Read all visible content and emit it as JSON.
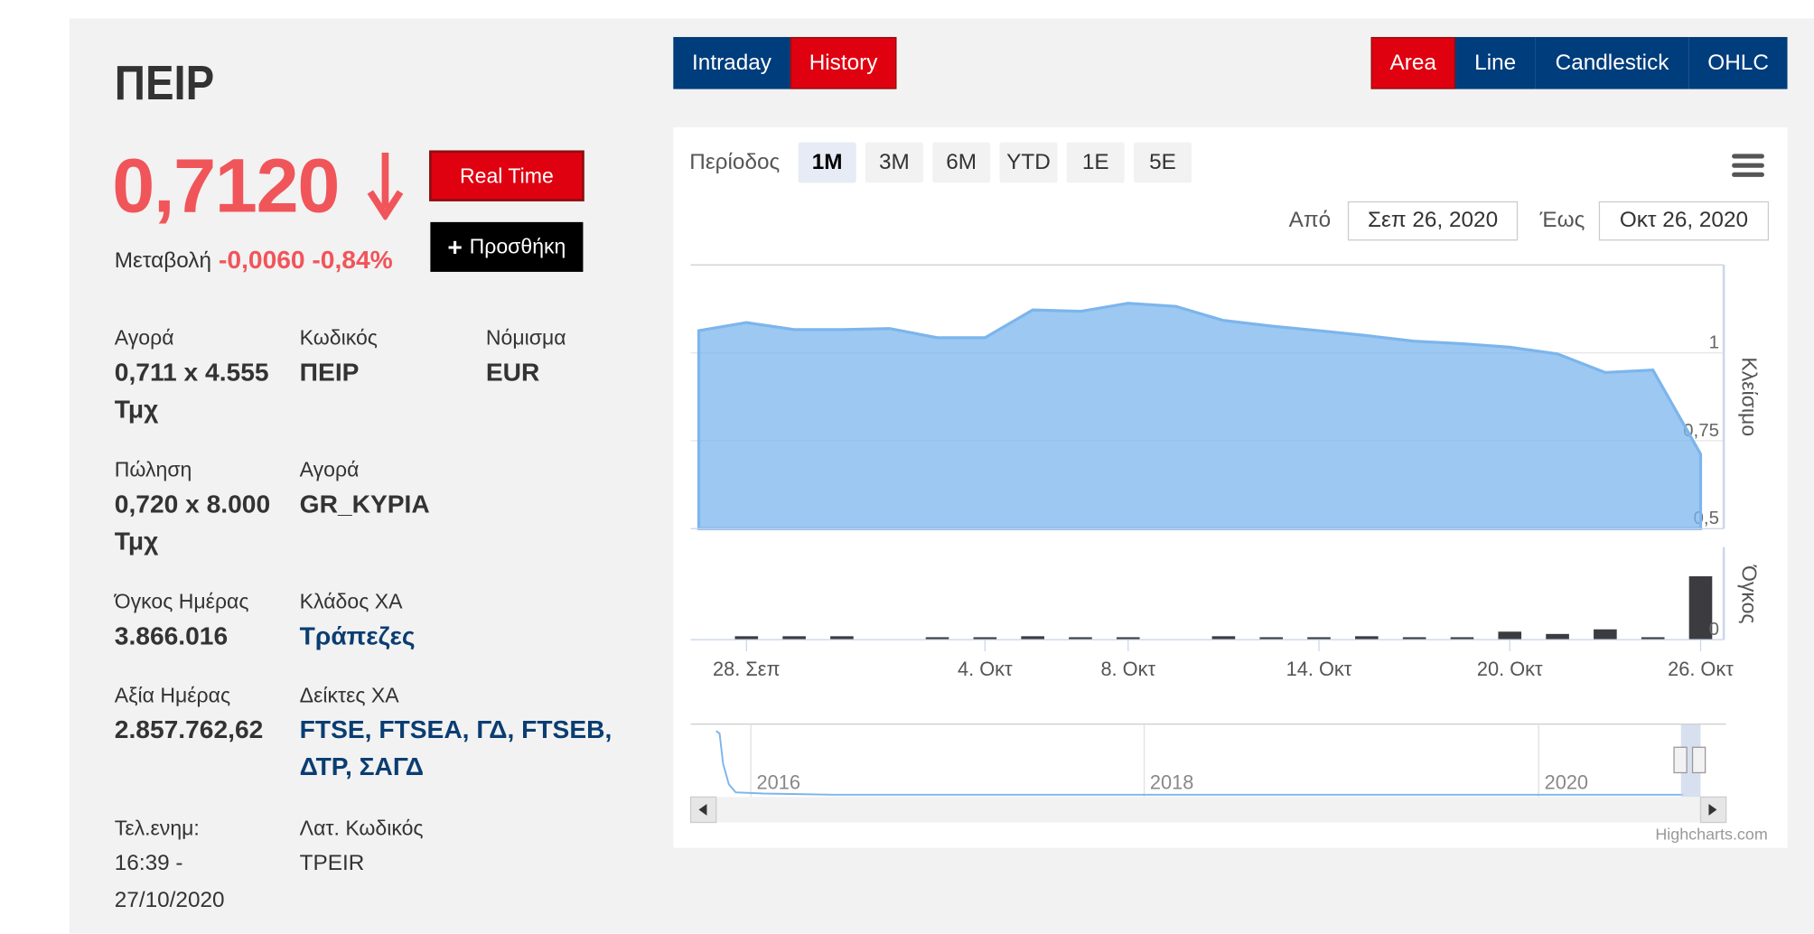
{
  "header": {
    "symbol": "ΠΕΙΡ"
  },
  "quote": {
    "price": "0,7120",
    "change_label": "Μεταβολή",
    "change": "-0,0060 -0,84%"
  },
  "buttons": {
    "real_time": "Real Time",
    "add": "Προσθήκη"
  },
  "details": [
    {
      "label": "Αγορά",
      "value": "0,711 x 4.555 Τμχ"
    },
    {
      "label": "Κωδικός",
      "value": "ΠΕΙΡ"
    },
    {
      "label": "Νόμισμα",
      "value": "EUR"
    },
    {
      "label": "Πώληση",
      "value": "0,720 x 8.000 Τμχ"
    },
    {
      "label": "Αγορά",
      "value": "GR_ΚΥΡΙΑ"
    },
    {
      "label": "Όγκος Ημέρας",
      "value": "3.866.016"
    },
    {
      "label": "Κλάδος ΧΑ",
      "value": "Τράπεζες"
    },
    {
      "label": "Αξία Ημέρας",
      "value": "2.857.762,62"
    },
    {
      "label": "Δείκτες ΧΑ",
      "value": "FTSE, FTSEA, ΓΔ, FTSEB, ΔΤΡ, ΣΑΓΔ"
    },
    {
      "label": "Τελ.ενημ:",
      "value": "16:39 - 27/10/2020"
    },
    {
      "label": "Λατ. Κωδικός",
      "value": "TPEIR"
    }
  ],
  "tabs": [
    "Intraday",
    "History"
  ],
  "chart_types": [
    "Area",
    "Line",
    "Candlestick",
    "OHLC"
  ],
  "period": {
    "label": "Περίοδος",
    "options": [
      "1M",
      "3M",
      "6M",
      "YTD",
      "1E",
      "5E"
    ]
  },
  "range": {
    "from_label": "Από",
    "from": "Σεπ 26, 2020",
    "to_label": "Έως",
    "to": "Οκτ 26, 2020"
  },
  "navigator": {
    "labels": [
      "2016",
      "2018",
      "2020"
    ]
  },
  "credits": "Highcharts.com",
  "chart_data": {
    "type": "area",
    "categories": [
      null,
      "28. Σεπ",
      null,
      null,
      null,
      null,
      "4. Οκτ",
      null,
      null,
      "8. Οκτ",
      null,
      null,
      null,
      "14. Οκτ",
      null,
      null,
      null,
      "20. Οκτ",
      null,
      null,
      null,
      "26. Οκτ"
    ],
    "series": [
      {
        "name": "Κλείσιμο",
        "color": "#7cb5ec",
        "values": [
          1.063,
          1.086,
          1.066,
          1.066,
          1.069,
          1.043,
          1.043,
          1.122,
          1.118,
          1.141,
          1.132,
          1.092,
          1.076,
          1.063,
          1.049,
          1.033,
          1.026,
          1.016,
          0.997,
          0.944,
          0.951,
          0.712
        ]
      },
      {
        "name": "Όγκος",
        "type": "bar",
        "axis": "y2",
        "color": "#3c3c40",
        "values": [
          0,
          210000,
          210000,
          210000,
          0,
          150000,
          150000,
          210000,
          150000,
          150000,
          0,
          210000,
          150000,
          150000,
          210000,
          150000,
          150000,
          490000,
          350000,
          630000,
          150000,
          3866016
        ]
      }
    ],
    "ylim": [
      0.5,
      1.25
    ],
    "yticks": [
      {
        "value": 0.5,
        "label": "0,5"
      },
      {
        "value": 0.75,
        "label": "0,75"
      },
      {
        "value": 1,
        "label": "1"
      }
    ],
    "y2lim": [
      0,
      5500000
    ],
    "y2ticks": [
      0
    ],
    "grid": true
  }
}
